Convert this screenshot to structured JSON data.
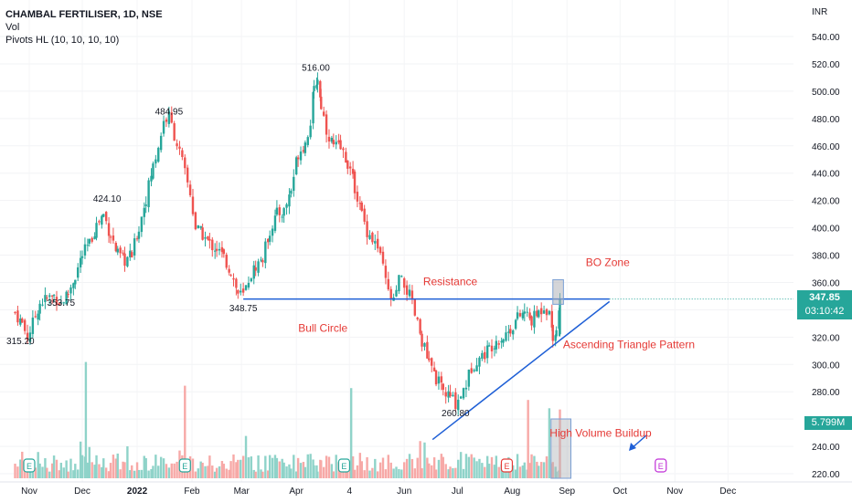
{
  "header": {
    "symbol_line": "CHAMBAL FERTILISER, 1D, NSE",
    "vol_label": "Vol",
    "pivots_label": "Pivots HL (10, 10, 10, 10)",
    "currency": "INR"
  },
  "price_tag": {
    "value": "347.85",
    "countdown": "03:10:42"
  },
  "volume_tag": {
    "value": "5.799M"
  },
  "colors": {
    "up": "#26a69a",
    "down": "#ef5350",
    "vol_up": "#8fd3c9",
    "vol_down": "#f7a9a7",
    "annotation": "#e53935",
    "line": "#1e5fd6",
    "price_tag": "#26a69a",
    "box_fill": "#b0b3b8"
  },
  "chart_data": {
    "type": "candlestick",
    "y_axis": {
      "min": 220,
      "max": 540,
      "step": 20,
      "ticks": [
        "540.00",
        "520.00",
        "500.00",
        "480.00",
        "460.00",
        "440.00",
        "420.00",
        "400.00",
        "380.00",
        "360.00",
        "340.00",
        "320.00",
        "300.00",
        "280.00",
        "260.00",
        "240.00",
        "220.00"
      ]
    },
    "x_axis": {
      "labels": [
        {
          "text": "Nov",
          "day": 0
        },
        {
          "text": "Dec",
          "day": 30
        },
        {
          "text": "2022",
          "day": 61
        },
        {
          "text": "Feb",
          "day": 92
        },
        {
          "text": "Mar",
          "day": 120
        },
        {
          "text": "Apr",
          "day": 151
        },
        {
          "text": "4",
          "day": 181
        },
        {
          "text": "Jun",
          "day": 212
        },
        {
          "text": "Jul",
          "day": 242
        },
        {
          "text": "Aug",
          "day": 273
        },
        {
          "text": "Sep",
          "day": 304
        },
        {
          "text": "Oct",
          "day": 334
        },
        {
          "text": "Nov",
          "day": 365
        },
        {
          "text": "Dec",
          "day": 395
        }
      ]
    },
    "price_path": [
      [
        -8,
        338
      ],
      [
        -4,
        330
      ],
      [
        -1,
        320
      ],
      [
        2,
        330
      ],
      [
        6,
        345
      ],
      [
        10,
        348
      ],
      [
        14,
        350
      ],
      [
        18,
        345
      ],
      [
        22,
        352
      ],
      [
        26,
        365
      ],
      [
        30,
        380
      ],
      [
        34,
        388
      ],
      [
        38,
        402
      ],
      [
        42,
        410
      ],
      [
        46,
        395
      ],
      [
        50,
        380
      ],
      [
        54,
        376
      ],
      [
        58,
        380
      ],
      [
        62,
        400
      ],
      [
        66,
        422
      ],
      [
        70,
        445
      ],
      [
        73,
        460
      ],
      [
        76,
        478
      ],
      [
        79,
        482
      ],
      [
        82,
        468
      ],
      [
        85,
        455
      ],
      [
        88,
        440
      ],
      [
        91,
        425
      ],
      [
        94,
        400
      ],
      [
        98,
        395
      ],
      [
        102,
        388
      ],
      [
        106,
        385
      ],
      [
        110,
        378
      ],
      [
        114,
        368
      ],
      [
        118,
        352
      ],
      [
        121,
        350
      ],
      [
        124,
        362
      ],
      [
        128,
        372
      ],
      [
        132,
        378
      ],
      [
        136,
        398
      ],
      [
        140,
        410
      ],
      [
        144,
        412
      ],
      [
        148,
        428
      ],
      [
        152,
        455
      ],
      [
        156,
        462
      ],
      [
        159,
        478
      ],
      [
        161,
        500
      ],
      [
        163,
        510
      ],
      [
        165,
        490
      ],
      [
        168,
        472
      ],
      [
        172,
        460
      ],
      [
        176,
        458
      ],
      [
        180,
        448
      ],
      [
        184,
        430
      ],
      [
        188,
        410
      ],
      [
        191,
        398
      ],
      [
        194,
        392
      ],
      [
        197,
        385
      ],
      [
        200,
        370
      ],
      [
        203,
        352
      ],
      [
        206,
        345
      ],
      [
        209,
        362
      ],
      [
        212,
        358
      ],
      [
        215,
        350
      ],
      [
        218,
        336
      ],
      [
        222,
        318
      ],
      [
        226,
        300
      ],
      [
        230,
        290
      ],
      [
        234,
        280
      ],
      [
        238,
        276
      ],
      [
        241,
        272
      ],
      [
        244,
        278
      ],
      [
        247,
        286
      ],
      [
        250,
        298
      ],
      [
        253,
        304
      ],
      [
        256,
        306
      ],
      [
        260,
        312
      ],
      [
        264,
        318
      ],
      [
        268,
        320
      ],
      [
        272,
        326
      ],
      [
        276,
        334
      ],
      [
        280,
        338
      ],
      [
        284,
        332
      ],
      [
        288,
        338
      ],
      [
        291,
        343
      ],
      [
        294,
        338
      ],
      [
        296,
        322
      ],
      [
        298,
        325
      ],
      [
        300,
        347.85
      ]
    ],
    "volume": {
      "max": 10,
      "peaks_M": [
        9.8,
        7.8,
        7.6,
        6.6,
        5.799
      ]
    },
    "volume_highlight_days": [
      296,
      300
    ],
    "annotations": {
      "pivots": [
        {
          "text": "315.20",
          "day": -5,
          "price": 315
        },
        {
          "text": "424.10",
          "day": 44,
          "price": 419
        },
        {
          "text": "353.75",
          "day": 18,
          "price": 343
        },
        {
          "text": "484.95",
          "day": 79,
          "price": 483
        },
        {
          "text": "348.75",
          "day": 121,
          "price": 339
        },
        {
          "text": "516.00",
          "day": 162,
          "price": 515
        },
        {
          "text": "260.80",
          "day": 241,
          "price": 262
        }
      ],
      "notes": [
        {
          "text": "Resistance",
          "day": 238,
          "price": 358
        },
        {
          "text": "BO Zone",
          "day": 327,
          "price": 372
        },
        {
          "text": "Bull Circle",
          "day": 166,
          "price": 324
        },
        {
          "text": "Ascending Triangle Pattern",
          "day": 339,
          "price": 312
        },
        {
          "text": "High Volume Buildup",
          "day": 323,
          "price": 247
        }
      ],
      "resistance_price": 347.85,
      "bo_zone": {
        "day_start": 296,
        "day_end": 302,
        "price_low": 344,
        "price_high": 362
      },
      "triangle_line": {
        "start": {
          "day": 228,
          "price": 245
        },
        "end": {
          "day": 328,
          "price": 346
        }
      },
      "resistance_line": {
        "day_start": 121,
        "day_end": 328
      }
    },
    "events": [
      {
        "label": "E",
        "day": 0,
        "color": "#26a69a"
      },
      {
        "label": "E",
        "day": 88,
        "color": "#26a69a"
      },
      {
        "label": "E",
        "day": 178,
        "color": "#26a69a"
      },
      {
        "label": "E",
        "day": 270,
        "color": "#e53935"
      },
      {
        "label": "E",
        "day": 357,
        "color": "#c02ed6"
      }
    ]
  }
}
